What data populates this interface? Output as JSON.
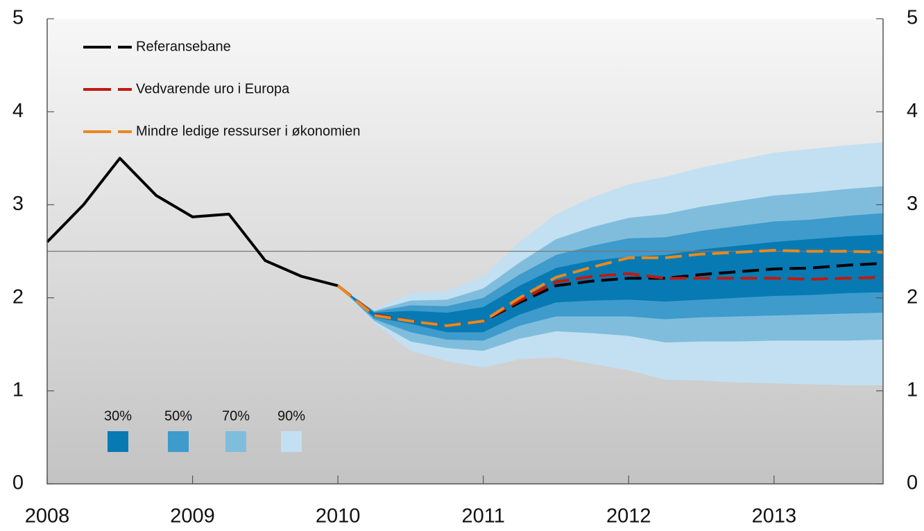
{
  "chart_data": {
    "type": "line",
    "x": [
      2008,
      2008.25,
      2008.5,
      2008.75,
      2009,
      2009.25,
      2009.5,
      2009.75,
      2010,
      2010.25,
      2010.5,
      2010.75,
      2011,
      2011.25,
      2011.5,
      2011.75,
      2012,
      2012.25,
      2012.5,
      2012.75,
      2013,
      2013.25,
      2013.5,
      2013.75
    ],
    "xlim": [
      2008,
      2013.75
    ],
    "xticks": [
      2008,
      2009,
      2010,
      2011,
      2012,
      2013
    ],
    "ylim": [
      0,
      5
    ],
    "yticks": [
      0,
      1,
      2,
      3,
      4,
      5
    ],
    "hline": 2.5,
    "bands": [
      {
        "label": "90%",
        "color": "#c2e0f1",
        "upper": [
          null,
          null,
          null,
          null,
          null,
          null,
          null,
          null,
          2.13,
          1.87,
          2.05,
          2.07,
          2.23,
          2.6,
          2.9,
          3.08,
          3.22,
          3.3,
          3.4,
          3.48,
          3.56,
          3.6,
          3.64,
          3.67
        ],
        "lower": [
          null,
          null,
          null,
          null,
          null,
          null,
          null,
          null,
          2.13,
          1.73,
          1.43,
          1.32,
          1.25,
          1.34,
          1.36,
          1.29,
          1.22,
          1.12,
          1.11,
          1.09,
          1.08,
          1.07,
          1.06,
          1.06
        ]
      },
      {
        "label": "70%",
        "color": "#80bddd",
        "upper": [
          null,
          null,
          null,
          null,
          null,
          null,
          null,
          null,
          2.13,
          1.86,
          1.97,
          1.98,
          2.1,
          2.38,
          2.63,
          2.76,
          2.86,
          2.9,
          2.98,
          3.04,
          3.1,
          3.13,
          3.17,
          3.2
        ],
        "lower": [
          null,
          null,
          null,
          null,
          null,
          null,
          null,
          null,
          2.13,
          1.75,
          1.53,
          1.46,
          1.43,
          1.56,
          1.64,
          1.62,
          1.59,
          1.52,
          1.53,
          1.53,
          1.54,
          1.54,
          1.54,
          1.55
        ]
      },
      {
        "label": "50%",
        "color": "#3e9bcb",
        "upper": [
          null,
          null,
          null,
          null,
          null,
          null,
          null,
          null,
          2.13,
          1.85,
          1.92,
          1.91,
          2.0,
          2.25,
          2.46,
          2.56,
          2.64,
          2.65,
          2.72,
          2.77,
          2.82,
          2.84,
          2.88,
          2.91
        ],
        "lower": [
          null,
          null,
          null,
          null,
          null,
          null,
          null,
          null,
          2.13,
          1.77,
          1.63,
          1.55,
          1.54,
          1.7,
          1.8,
          1.8,
          1.8,
          1.77,
          1.79,
          1.8,
          1.81,
          1.82,
          1.83,
          1.84
        ]
      },
      {
        "label": "30%",
        "color": "#077ab4",
        "upper": [
          null,
          null,
          null,
          null,
          null,
          null,
          null,
          null,
          2.13,
          1.84,
          1.86,
          1.84,
          1.9,
          2.13,
          2.32,
          2.4,
          2.44,
          2.46,
          2.52,
          2.56,
          2.6,
          2.63,
          2.66,
          2.68
        ],
        "lower": [
          null,
          null,
          null,
          null,
          null,
          null,
          null,
          null,
          2.13,
          1.79,
          1.72,
          1.63,
          1.63,
          1.82,
          1.95,
          1.97,
          1.98,
          1.96,
          1.98,
          2.0,
          2.02,
          2.03,
          2.05,
          2.06
        ]
      }
    ],
    "series": [
      {
        "color": "#000000",
        "dashed": false,
        "values": [
          2.6,
          3.0,
          3.5,
          3.1,
          2.87,
          2.9,
          2.4,
          2.23,
          2.13,
          null,
          null,
          null,
          null,
          null,
          null,
          null,
          null,
          null,
          null,
          null,
          null,
          null,
          null,
          null
        ]
      },
      {
        "name": "Referansebane",
        "color": "#000000",
        "dashed": true,
        "values": [
          null,
          null,
          null,
          null,
          null,
          null,
          null,
          null,
          2.13,
          1.82,
          1.75,
          1.7,
          1.75,
          1.95,
          2.13,
          2.18,
          2.21,
          2.21,
          2.25,
          2.28,
          2.31,
          2.32,
          2.35,
          2.37
        ]
      },
      {
        "name": "Vedvarende uro i Europa",
        "color": "#c0190f",
        "dashed": true,
        "values": [
          null,
          null,
          null,
          null,
          null,
          null,
          null,
          null,
          2.13,
          1.82,
          1.75,
          1.7,
          1.75,
          1.97,
          2.17,
          2.23,
          2.26,
          2.21,
          2.21,
          2.21,
          2.21,
          2.2,
          2.21,
          2.22
        ]
      },
      {
        "name": "Mindre ledige ressurser i økonomien",
        "color": "#e8891f",
        "dashed": true,
        "values": [
          null,
          null,
          null,
          null,
          null,
          null,
          null,
          null,
          2.13,
          1.81,
          1.75,
          1.7,
          1.75,
          2.0,
          2.22,
          2.33,
          2.43,
          2.43,
          2.47,
          2.49,
          2.51,
          2.5,
          2.5,
          2.49
        ]
      }
    ]
  }
}
